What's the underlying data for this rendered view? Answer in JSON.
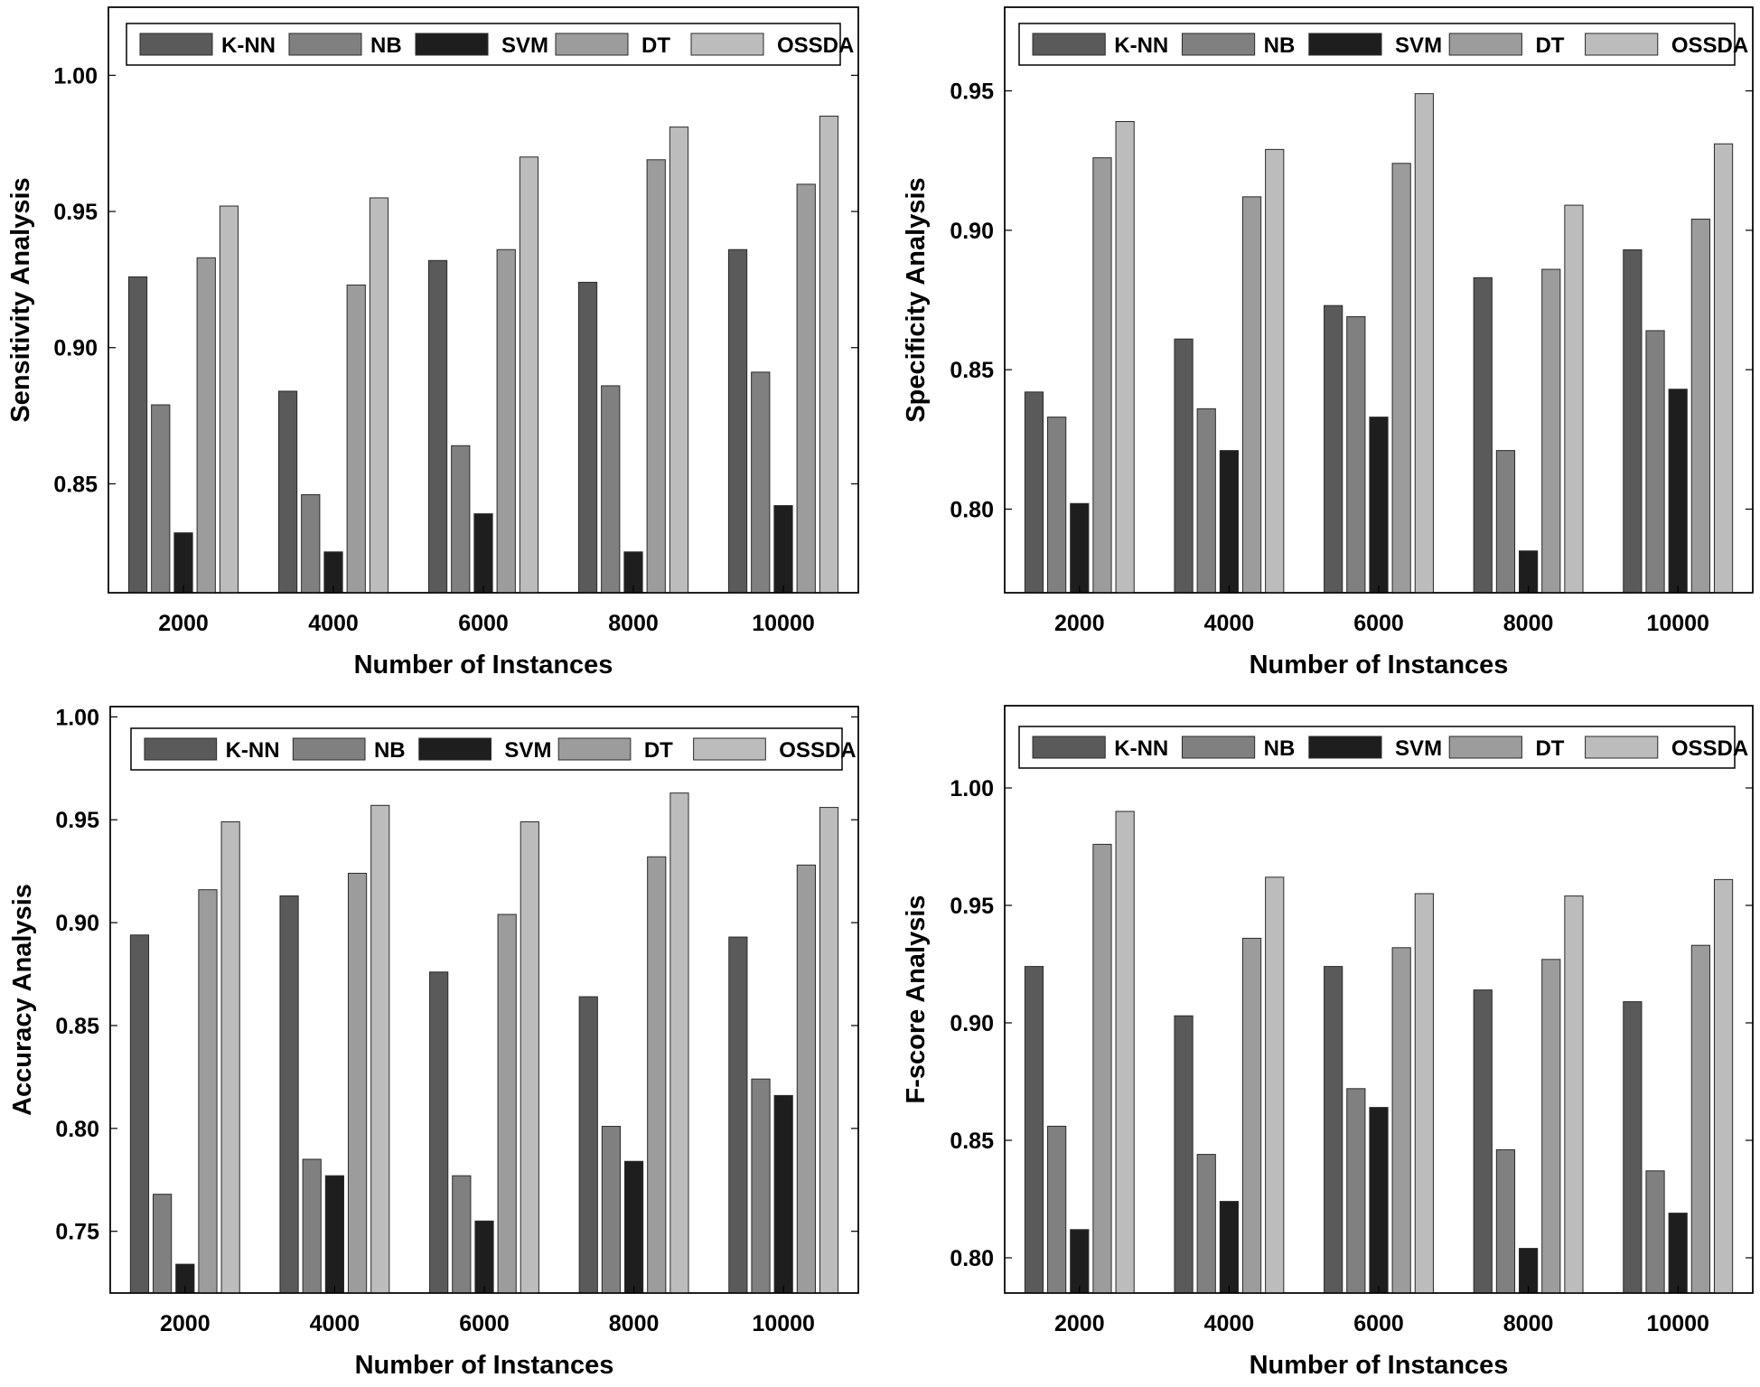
{
  "colors": {
    "K-NN": "#5a5a5a",
    "NB": "#808080",
    "SVM": "#1e1e1e",
    "DT": "#9c9c9c",
    "OSSDA": "#bcbcbc"
  },
  "chart_data": [
    {
      "type": "bar",
      "categories": [
        "2000",
        "4000",
        "6000",
        "8000",
        "10000"
      ],
      "xlabel": "Number of Instances",
      "ylabel": "Sensitivity Analysis",
      "ylim": [
        0.81,
        1.025
      ],
      "yticks": [
        0.85,
        0.9,
        0.95,
        1.0
      ],
      "ytick_labels": [
        "0.85",
        "0.90",
        "0.95",
        "1.00"
      ],
      "legend_position": "top",
      "series": [
        {
          "name": "K-NN",
          "values": [
            0.926,
            0.884,
            0.932,
            0.924,
            0.936
          ]
        },
        {
          "name": "NB",
          "values": [
            0.879,
            0.846,
            0.864,
            0.886,
            0.891
          ]
        },
        {
          "name": "SVM",
          "values": [
            0.832,
            0.825,
            0.839,
            0.825,
            0.842
          ]
        },
        {
          "name": "DT",
          "values": [
            0.933,
            0.923,
            0.936,
            0.969,
            0.96
          ]
        },
        {
          "name": "OSSDA",
          "values": [
            0.952,
            0.955,
            0.97,
            0.981,
            0.985
          ]
        }
      ]
    },
    {
      "type": "bar",
      "categories": [
        "2000",
        "4000",
        "6000",
        "8000",
        "10000"
      ],
      "xlabel": "Number of Instances",
      "ylabel": "Specificity Analysis",
      "ylim": [
        0.77,
        0.98
      ],
      "yticks": [
        0.8,
        0.85,
        0.9,
        0.95
      ],
      "ytick_labels": [
        "0.80",
        "0.85",
        "0.90",
        "0.95"
      ],
      "legend_position": "top",
      "series": [
        {
          "name": "K-NN",
          "values": [
            0.842,
            0.861,
            0.873,
            0.883,
            0.893
          ]
        },
        {
          "name": "NB",
          "values": [
            0.833,
            0.836,
            0.869,
            0.821,
            0.864
          ]
        },
        {
          "name": "SVM",
          "values": [
            0.802,
            0.821,
            0.833,
            0.785,
            0.843
          ]
        },
        {
          "name": "DT",
          "values": [
            0.926,
            0.912,
            0.924,
            0.886,
            0.904
          ]
        },
        {
          "name": "OSSDA",
          "values": [
            0.939,
            0.929,
            0.949,
            0.909,
            0.931
          ]
        }
      ]
    },
    {
      "type": "bar",
      "categories": [
        "2000",
        "4000",
        "6000",
        "8000",
        "10000"
      ],
      "xlabel": "Number of Instances",
      "ylabel": "Accuracy Analysis",
      "ylim": [
        0.72,
        1.005
      ],
      "yticks": [
        0.75,
        0.8,
        0.85,
        0.9,
        0.95,
        1.0
      ],
      "ytick_labels": [
        "0.75",
        "0.80",
        "0.85",
        "0.90",
        "0.95",
        "1.00"
      ],
      "legend_position": "top",
      "series": [
        {
          "name": "K-NN",
          "values": [
            0.894,
            0.913,
            0.876,
            0.864,
            0.893
          ]
        },
        {
          "name": "NB",
          "values": [
            0.768,
            0.785,
            0.777,
            0.801,
            0.824
          ]
        },
        {
          "name": "SVM",
          "values": [
            0.734,
            0.777,
            0.755,
            0.784,
            0.816
          ]
        },
        {
          "name": "DT",
          "values": [
            0.916,
            0.924,
            0.904,
            0.932,
            0.928
          ]
        },
        {
          "name": "OSSDA",
          "values": [
            0.949,
            0.957,
            0.949,
            0.963,
            0.956
          ]
        }
      ]
    },
    {
      "type": "bar",
      "categories": [
        "2000",
        "4000",
        "6000",
        "8000",
        "10000"
      ],
      "xlabel": "Number of Instances",
      "ylabel": "F-score Analysis",
      "ylim": [
        0.785,
        1.035
      ],
      "yticks": [
        0.8,
        0.85,
        0.9,
        0.95,
        1.0
      ],
      "ytick_labels": [
        "0.80",
        "0.85",
        "0.90",
        "0.95",
        "1.00"
      ],
      "legend_position": "top",
      "series": [
        {
          "name": "K-NN",
          "values": [
            0.924,
            0.903,
            0.924,
            0.914,
            0.909
          ]
        },
        {
          "name": "NB",
          "values": [
            0.856,
            0.844,
            0.872,
            0.846,
            0.837
          ]
        },
        {
          "name": "SVM",
          "values": [
            0.812,
            0.824,
            0.864,
            0.804,
            0.819
          ]
        },
        {
          "name": "DT",
          "values": [
            0.976,
            0.936,
            0.932,
            0.927,
            0.933
          ]
        },
        {
          "name": "OSSDA",
          "values": [
            0.99,
            0.962,
            0.955,
            0.954,
            0.961
          ]
        }
      ]
    }
  ]
}
